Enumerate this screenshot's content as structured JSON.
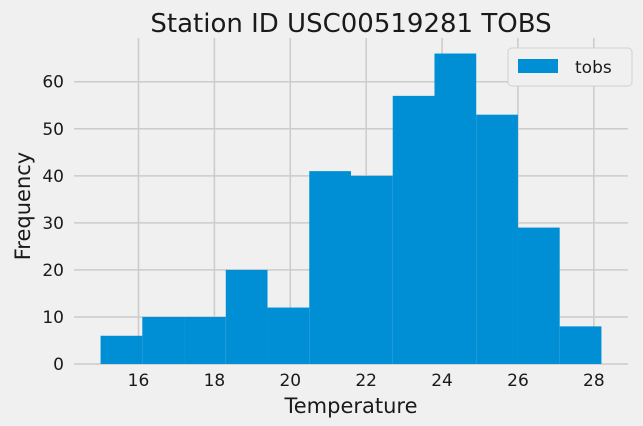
{
  "chart_data": {
    "type": "bar",
    "title": "Station ID USC00519281 TOBS",
    "xlabel": "Temperature",
    "ylabel": "Frequency",
    "bin_edges": [
      15.0,
      16.1,
      17.2,
      18.3,
      19.4,
      20.5,
      21.6,
      22.7,
      23.8,
      24.9,
      26.0,
      27.1,
      28.2
    ],
    "values": [
      6,
      10,
      10,
      20,
      12,
      41,
      40,
      57,
      66,
      53,
      29,
      8
    ],
    "xlim": [
      14.3,
      28.9
    ],
    "ylim": [
      0,
      69.3
    ],
    "xticks": [
      16,
      18,
      20,
      22,
      24,
      26,
      28
    ],
    "yticks": [
      0,
      10,
      20,
      30,
      40,
      50,
      60
    ],
    "series": [
      {
        "name": "tobs",
        "color": "#008fd5"
      }
    ],
    "legend": {
      "placement": "upper-right"
    },
    "grid": true
  }
}
